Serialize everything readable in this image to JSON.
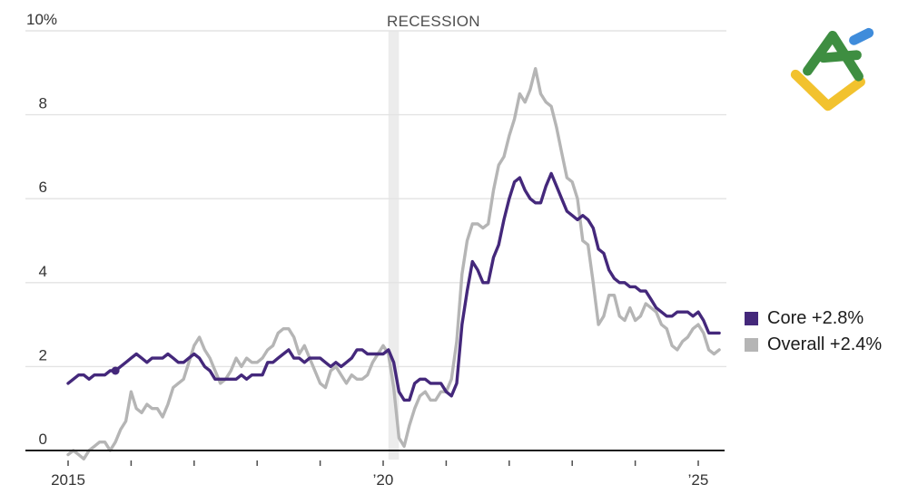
{
  "chart_data": {
    "type": "line",
    "title": "",
    "y_axis": {
      "range": [
        0,
        10
      ],
      "ticks": [
        {
          "value": 0,
          "label": "0"
        },
        {
          "value": 2,
          "label": "2"
        },
        {
          "value": 4,
          "label": "4"
        },
        {
          "value": 6,
          "label": "6"
        },
        {
          "value": 8,
          "label": "8"
        },
        {
          "value": 10,
          "label": "10%"
        }
      ]
    },
    "x_axis": {
      "start": "2015-01",
      "interval": "month",
      "tick_months": [
        0,
        12,
        24,
        36,
        48,
        60,
        72,
        84,
        96,
        108,
        120
      ],
      "labels": [
        {
          "month": 0,
          "text": "2015"
        },
        {
          "month": 60,
          "text": "’20"
        },
        {
          "month": 120,
          "text": "’25"
        }
      ]
    },
    "recession": {
      "label": "RECESSION",
      "start": "2020-02",
      "end": "2020-04"
    },
    "legend_position": "right",
    "series": [
      {
        "name": "Core",
        "legend": "Core +2.8%",
        "color": "#44287b",
        "marker_month": 9,
        "values": [
          1.6,
          1.7,
          1.8,
          1.8,
          1.7,
          1.8,
          1.8,
          1.8,
          1.9,
          1.9,
          2.0,
          2.1,
          2.2,
          2.3,
          2.2,
          2.1,
          2.2,
          2.2,
          2.2,
          2.3,
          2.2,
          2.1,
          2.1,
          2.2,
          2.3,
          2.2,
          2.0,
          1.9,
          1.7,
          1.7,
          1.7,
          1.7,
          1.7,
          1.8,
          1.7,
          1.8,
          1.8,
          1.8,
          2.1,
          2.1,
          2.2,
          2.3,
          2.4,
          2.2,
          2.2,
          2.1,
          2.2,
          2.2,
          2.2,
          2.1,
          2.0,
          2.1,
          2.0,
          2.1,
          2.2,
          2.4,
          2.4,
          2.3,
          2.3,
          2.3,
          2.3,
          2.4,
          2.1,
          1.4,
          1.2,
          1.2,
          1.6,
          1.7,
          1.7,
          1.6,
          1.6,
          1.6,
          1.4,
          1.3,
          1.6,
          3.0,
          3.8,
          4.5,
          4.3,
          4.0,
          4.0,
          4.6,
          4.9,
          5.5,
          6.0,
          6.4,
          6.5,
          6.2,
          6.0,
          5.9,
          5.9,
          6.3,
          6.6,
          6.3,
          6.0,
          5.7,
          5.6,
          5.5,
          5.6,
          5.5,
          5.3,
          4.8,
          4.7,
          4.3,
          4.1,
          4.0,
          4.0,
          3.9,
          3.9,
          3.8,
          3.8,
          3.6,
          3.4,
          3.3,
          3.2,
          3.2,
          3.3,
          3.3,
          3.3,
          3.2,
          3.3,
          3.1,
          2.8,
          2.8,
          2.8
        ]
      },
      {
        "name": "Overall",
        "legend": "Overall +2.4%",
        "color": "#b5b5b5",
        "values": [
          -0.1,
          0.0,
          -0.1,
          -0.2,
          0.0,
          0.1,
          0.2,
          0.2,
          0.0,
          0.2,
          0.5,
          0.7,
          1.4,
          1.0,
          0.9,
          1.1,
          1.0,
          1.0,
          0.8,
          1.1,
          1.5,
          1.6,
          1.7,
          2.1,
          2.5,
          2.7,
          2.4,
          2.2,
          1.9,
          1.6,
          1.7,
          1.9,
          2.2,
          2.0,
          2.2,
          2.1,
          2.1,
          2.2,
          2.4,
          2.5,
          2.8,
          2.9,
          2.9,
          2.7,
          2.3,
          2.5,
          2.2,
          1.9,
          1.6,
          1.5,
          1.9,
          2.0,
          1.8,
          1.6,
          1.8,
          1.7,
          1.7,
          1.8,
          2.1,
          2.3,
          2.5,
          2.3,
          1.5,
          0.3,
          0.1,
          0.6,
          1.0,
          1.3,
          1.4,
          1.2,
          1.2,
          1.4,
          1.4,
          1.7,
          2.6,
          4.2,
          5.0,
          5.4,
          5.4,
          5.3,
          5.4,
          6.2,
          6.8,
          7.0,
          7.5,
          7.9,
          8.5,
          8.3,
          8.6,
          9.1,
          8.5,
          8.3,
          8.2,
          7.7,
          7.1,
          6.5,
          6.4,
          6.0,
          5.0,
          4.9,
          4.0,
          3.0,
          3.2,
          3.7,
          3.7,
          3.2,
          3.1,
          3.4,
          3.1,
          3.2,
          3.5,
          3.4,
          3.3,
          3.0,
          2.9,
          2.5,
          2.4,
          2.6,
          2.7,
          2.9,
          3.0,
          2.8,
          2.4,
          2.3,
          2.4
        ]
      }
    ],
    "colors": {
      "grid": "#e3e3e3",
      "axis": "#1d1d1d",
      "band": "#ececec",
      "tick": "#4d4d4d",
      "tick_text": "#333333"
    }
  },
  "logo_colors": {
    "green": "#3e8e41",
    "blue": "#3f8cdb",
    "yellow": "#f2c22e"
  }
}
